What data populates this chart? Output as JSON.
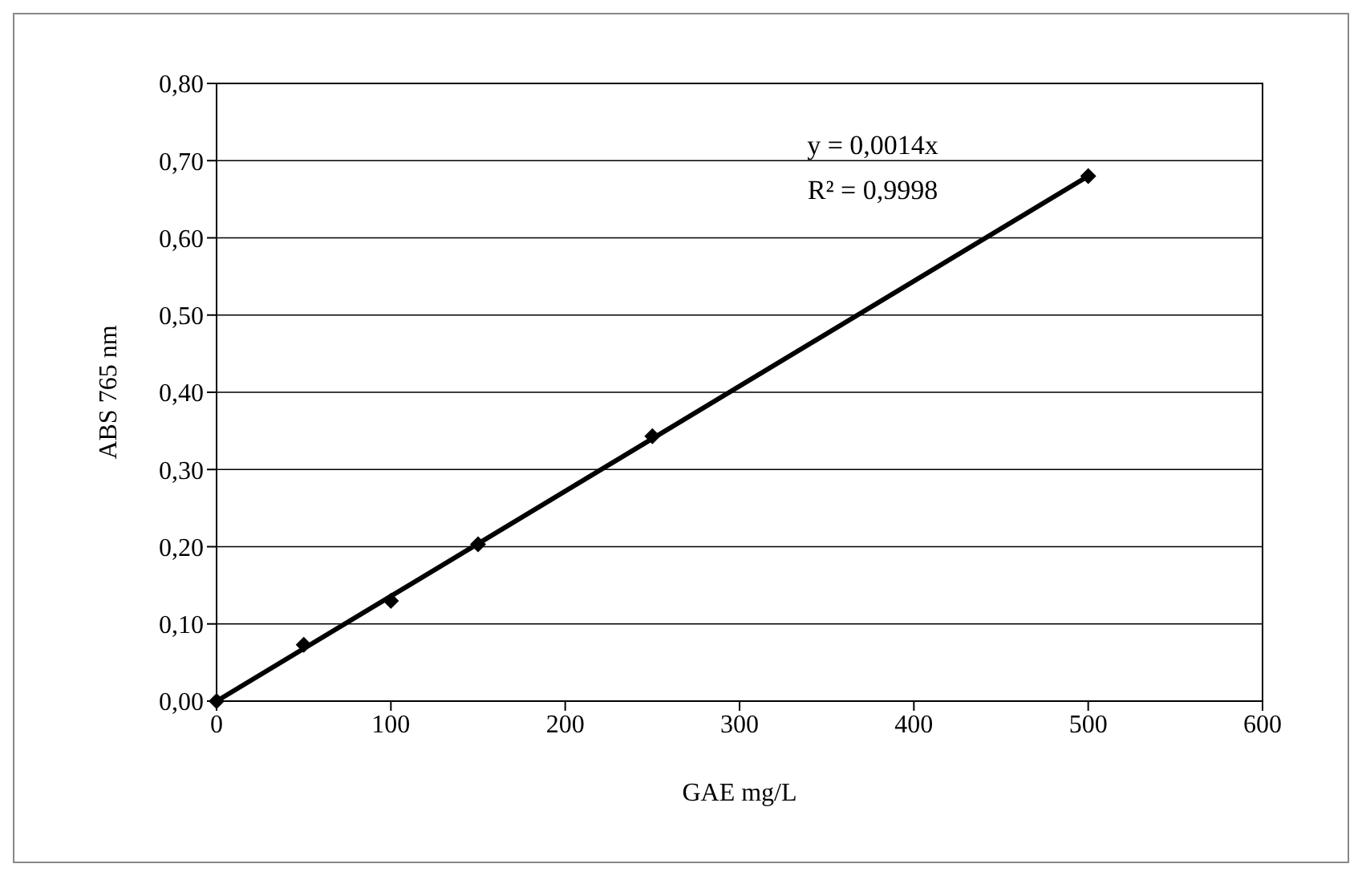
{
  "chart_data": {
    "type": "scatter",
    "xlabel": "GAE mg/L",
    "ylabel": "ABS 765 nm",
    "annotations": [
      "y = 0,0014x",
      "R² = 0,9998"
    ],
    "series": [
      {
        "type": "line",
        "color": "#000000",
        "marker": "none",
        "line_style": "solid",
        "x": [
          0,
          500
        ],
        "values": [
          0,
          0.68
        ]
      },
      {
        "color": "#000000",
        "marker": "diamond",
        "x": [
          0,
          50,
          100,
          150,
          250,
          500
        ],
        "values": [
          0,
          0.073,
          0.13,
          0.203,
          0.343,
          0.68
        ]
      }
    ],
    "xlim": [
      0,
      600
    ],
    "xticks": [
      0,
      100,
      200,
      300,
      400,
      500,
      600
    ],
    "ylim": [
      0,
      0.8
    ],
    "yticks": [
      {
        "value": 0,
        "label": "0,00"
      },
      {
        "value": 0.1,
        "label": "0,10"
      },
      {
        "value": 0.2,
        "label": "0,20"
      },
      {
        "value": 0.3,
        "label": "0,30"
      },
      {
        "value": 0.4,
        "label": "0,40"
      },
      {
        "value": 0.5,
        "label": "0,50"
      },
      {
        "value": 0.6,
        "label": "0,60"
      },
      {
        "value": 0.7,
        "label": "0,70"
      },
      {
        "value": 0.8,
        "label": "0,80"
      }
    ],
    "grid": "y"
  }
}
